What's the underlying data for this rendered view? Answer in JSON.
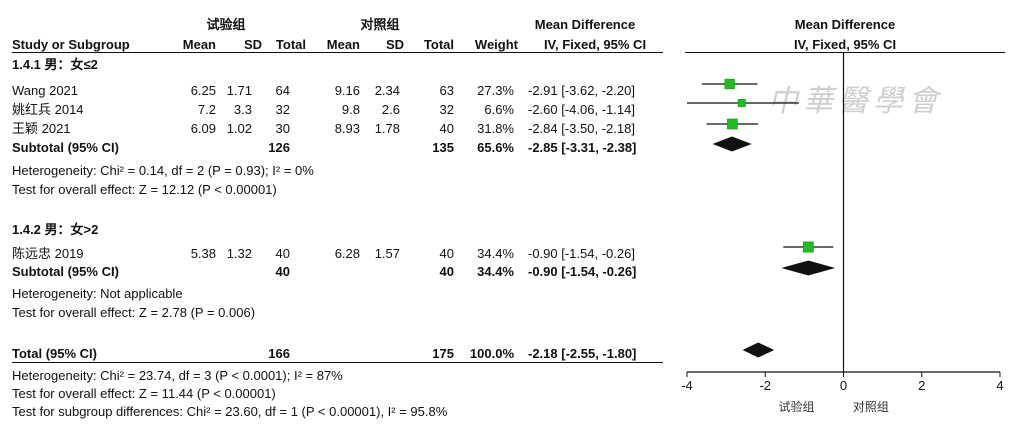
{
  "header": {
    "group_exp": "试验组",
    "group_ctrl": "对照组",
    "md_table": "Mean Difference",
    "md_plot": "Mean Difference",
    "col_study": "Study or Subgroup",
    "col_mean": "Mean",
    "col_sd": "SD",
    "col_total": "Total",
    "col_mean2": "Mean",
    "col_sd2": "SD",
    "col_total2": "Total",
    "col_weight": "Weight",
    "col_ci": "IV, Fixed, 95% CI",
    "plot_ci": "IV, Fixed, 95% CI"
  },
  "subgroups": [
    {
      "title": "1.4.1 男：女≤2",
      "studies": [
        {
          "name": "Wang 2021",
          "mean1": "6.25",
          "sd1": "1.71",
          "n1": "64",
          "mean2": "9.16",
          "sd2": "2.34",
          "n2": "63",
          "weight": "27.3%",
          "ci": "-2.91 [-3.62, -2.20]"
        },
        {
          "name": "姚红兵 2014",
          "mean1": "7.2",
          "sd1": "3.3",
          "n1": "32",
          "mean2": "9.8",
          "sd2": "2.6",
          "n2": "32",
          "weight": "6.6%",
          "ci": "-2.60 [-4.06, -1.14]"
        },
        {
          "name": "王颖 2021",
          "mean1": "6.09",
          "sd1": "1.02",
          "n1": "30",
          "mean2": "8.93",
          "sd2": "1.78",
          "n2": "40",
          "weight": "31.8%",
          "ci": "-2.84 [-3.50, -2.18]"
        }
      ],
      "subtotal": {
        "label": "Subtotal (95% CI)",
        "n1": "126",
        "n2": "135",
        "weight": "65.6%",
        "ci": "-2.85 [-3.31, -2.38]"
      },
      "heterogeneity": "Heterogeneity: Chi² = 0.14, df = 2 (P = 0.93); I² = 0%",
      "overall": "Test for overall effect: Z = 12.12 (P < 0.00001)"
    },
    {
      "title": "1.4.2 男：女>2",
      "studies": [
        {
          "name": "陈远忠 2019",
          "mean1": "5.38",
          "sd1": "1.32",
          "n1": "40",
          "mean2": "6.28",
          "sd2": "1.57",
          "n2": "40",
          "weight": "34.4%",
          "ci": "-0.90 [-1.54, -0.26]"
        }
      ],
      "subtotal": {
        "label": "Subtotal (95% CI)",
        "n1": "40",
        "n2": "40",
        "weight": "34.4%",
        "ci": "-0.90 [-1.54, -0.26]"
      },
      "heterogeneity": "Heterogeneity: Not applicable",
      "overall": "Test for overall effect: Z = 2.78 (P = 0.006)"
    }
  ],
  "total": {
    "label": "Total (95% CI)",
    "n1": "166",
    "n2": "175",
    "weight": "100.0%",
    "ci": "-2.18 [-2.55, -1.80]",
    "heterogeneity": "Heterogeneity: Chi² = 23.74, df = 3 (P < 0.0001); I² = 87%",
    "overall": "Test for overall effect: Z = 11.44 (P < 0.00001)",
    "subgroup_diff": "Test for subgroup differences: Chi² = 23.60, df = 1 (P < 0.00001), I² = 95.8%"
  },
  "watermark": "中華醫學會",
  "chart_data": {
    "type": "forest",
    "xlim": [
      -4,
      4
    ],
    "ticks": [
      "-4",
      "-2",
      "0",
      "2",
      "4"
    ],
    "xlabel_left": "试验组",
    "xlabel_right": "对照组",
    "marker_color": "#22bb22",
    "studies": [
      {
        "label": "Wang 2021",
        "md": -2.91,
        "lo": -3.62,
        "hi": -2.2,
        "weight": 27.3
      },
      {
        "label": "姚红兵 2014",
        "md": -2.6,
        "lo": -4.06,
        "hi": -1.14,
        "weight": 6.6
      },
      {
        "label": "王颖 2021",
        "md": -2.84,
        "lo": -3.5,
        "hi": -2.18,
        "weight": 31.8
      },
      {
        "label": "陈远忠 2019",
        "md": -0.9,
        "lo": -1.54,
        "hi": -0.26,
        "weight": 34.4
      }
    ],
    "diamonds": [
      {
        "label": "Subtotal 1.4.1",
        "md": -2.85,
        "lo": -3.31,
        "hi": -2.38
      },
      {
        "label": "Subtotal 1.4.2",
        "md": -0.9,
        "lo": -1.54,
        "hi": -0.26
      },
      {
        "label": "Total",
        "md": -2.18,
        "lo": -2.55,
        "hi": -1.8
      }
    ]
  }
}
